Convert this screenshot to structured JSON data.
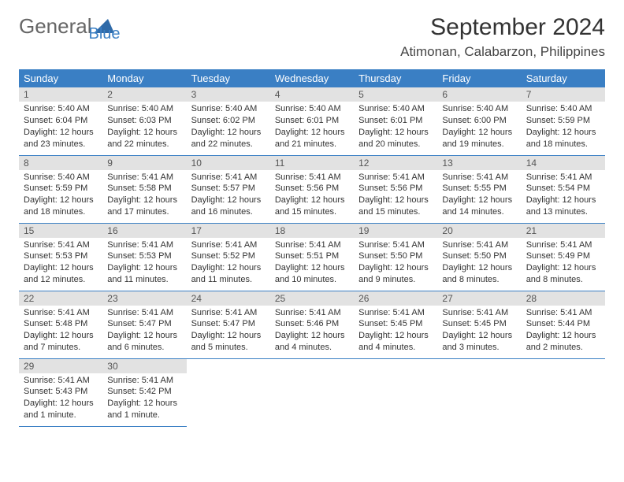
{
  "logo": {
    "text1": "General",
    "text2": "Blue",
    "shape_color": "#2f6aa8"
  },
  "title": "September 2024",
  "location": "Atimonan, Calabarzon, Philippines",
  "header_bg": "#3a7fc4",
  "daynum_bg": "#e2e2e2",
  "border_color": "#3a7fc4",
  "days_of_week": [
    "Sunday",
    "Monday",
    "Tuesday",
    "Wednesday",
    "Thursday",
    "Friday",
    "Saturday"
  ],
  "weeks": [
    [
      {
        "num": "1",
        "sunrise": "Sunrise: 5:40 AM",
        "sunset": "Sunset: 6:04 PM",
        "daylight1": "Daylight: 12 hours",
        "daylight2": "and 23 minutes."
      },
      {
        "num": "2",
        "sunrise": "Sunrise: 5:40 AM",
        "sunset": "Sunset: 6:03 PM",
        "daylight1": "Daylight: 12 hours",
        "daylight2": "and 22 minutes."
      },
      {
        "num": "3",
        "sunrise": "Sunrise: 5:40 AM",
        "sunset": "Sunset: 6:02 PM",
        "daylight1": "Daylight: 12 hours",
        "daylight2": "and 22 minutes."
      },
      {
        "num": "4",
        "sunrise": "Sunrise: 5:40 AM",
        "sunset": "Sunset: 6:01 PM",
        "daylight1": "Daylight: 12 hours",
        "daylight2": "and 21 minutes."
      },
      {
        "num": "5",
        "sunrise": "Sunrise: 5:40 AM",
        "sunset": "Sunset: 6:01 PM",
        "daylight1": "Daylight: 12 hours",
        "daylight2": "and 20 minutes."
      },
      {
        "num": "6",
        "sunrise": "Sunrise: 5:40 AM",
        "sunset": "Sunset: 6:00 PM",
        "daylight1": "Daylight: 12 hours",
        "daylight2": "and 19 minutes."
      },
      {
        "num": "7",
        "sunrise": "Sunrise: 5:40 AM",
        "sunset": "Sunset: 5:59 PM",
        "daylight1": "Daylight: 12 hours",
        "daylight2": "and 18 minutes."
      }
    ],
    [
      {
        "num": "8",
        "sunrise": "Sunrise: 5:40 AM",
        "sunset": "Sunset: 5:59 PM",
        "daylight1": "Daylight: 12 hours",
        "daylight2": "and 18 minutes."
      },
      {
        "num": "9",
        "sunrise": "Sunrise: 5:41 AM",
        "sunset": "Sunset: 5:58 PM",
        "daylight1": "Daylight: 12 hours",
        "daylight2": "and 17 minutes."
      },
      {
        "num": "10",
        "sunrise": "Sunrise: 5:41 AM",
        "sunset": "Sunset: 5:57 PM",
        "daylight1": "Daylight: 12 hours",
        "daylight2": "and 16 minutes."
      },
      {
        "num": "11",
        "sunrise": "Sunrise: 5:41 AM",
        "sunset": "Sunset: 5:56 PM",
        "daylight1": "Daylight: 12 hours",
        "daylight2": "and 15 minutes."
      },
      {
        "num": "12",
        "sunrise": "Sunrise: 5:41 AM",
        "sunset": "Sunset: 5:56 PM",
        "daylight1": "Daylight: 12 hours",
        "daylight2": "and 15 minutes."
      },
      {
        "num": "13",
        "sunrise": "Sunrise: 5:41 AM",
        "sunset": "Sunset: 5:55 PM",
        "daylight1": "Daylight: 12 hours",
        "daylight2": "and 14 minutes."
      },
      {
        "num": "14",
        "sunrise": "Sunrise: 5:41 AM",
        "sunset": "Sunset: 5:54 PM",
        "daylight1": "Daylight: 12 hours",
        "daylight2": "and 13 minutes."
      }
    ],
    [
      {
        "num": "15",
        "sunrise": "Sunrise: 5:41 AM",
        "sunset": "Sunset: 5:53 PM",
        "daylight1": "Daylight: 12 hours",
        "daylight2": "and 12 minutes."
      },
      {
        "num": "16",
        "sunrise": "Sunrise: 5:41 AM",
        "sunset": "Sunset: 5:53 PM",
        "daylight1": "Daylight: 12 hours",
        "daylight2": "and 11 minutes."
      },
      {
        "num": "17",
        "sunrise": "Sunrise: 5:41 AM",
        "sunset": "Sunset: 5:52 PM",
        "daylight1": "Daylight: 12 hours",
        "daylight2": "and 11 minutes."
      },
      {
        "num": "18",
        "sunrise": "Sunrise: 5:41 AM",
        "sunset": "Sunset: 5:51 PM",
        "daylight1": "Daylight: 12 hours",
        "daylight2": "and 10 minutes."
      },
      {
        "num": "19",
        "sunrise": "Sunrise: 5:41 AM",
        "sunset": "Sunset: 5:50 PM",
        "daylight1": "Daylight: 12 hours",
        "daylight2": "and 9 minutes."
      },
      {
        "num": "20",
        "sunrise": "Sunrise: 5:41 AM",
        "sunset": "Sunset: 5:50 PM",
        "daylight1": "Daylight: 12 hours",
        "daylight2": "and 8 minutes."
      },
      {
        "num": "21",
        "sunrise": "Sunrise: 5:41 AM",
        "sunset": "Sunset: 5:49 PM",
        "daylight1": "Daylight: 12 hours",
        "daylight2": "and 8 minutes."
      }
    ],
    [
      {
        "num": "22",
        "sunrise": "Sunrise: 5:41 AM",
        "sunset": "Sunset: 5:48 PM",
        "daylight1": "Daylight: 12 hours",
        "daylight2": "and 7 minutes."
      },
      {
        "num": "23",
        "sunrise": "Sunrise: 5:41 AM",
        "sunset": "Sunset: 5:47 PM",
        "daylight1": "Daylight: 12 hours",
        "daylight2": "and 6 minutes."
      },
      {
        "num": "24",
        "sunrise": "Sunrise: 5:41 AM",
        "sunset": "Sunset: 5:47 PM",
        "daylight1": "Daylight: 12 hours",
        "daylight2": "and 5 minutes."
      },
      {
        "num": "25",
        "sunrise": "Sunrise: 5:41 AM",
        "sunset": "Sunset: 5:46 PM",
        "daylight1": "Daylight: 12 hours",
        "daylight2": "and 4 minutes."
      },
      {
        "num": "26",
        "sunrise": "Sunrise: 5:41 AM",
        "sunset": "Sunset: 5:45 PM",
        "daylight1": "Daylight: 12 hours",
        "daylight2": "and 4 minutes."
      },
      {
        "num": "27",
        "sunrise": "Sunrise: 5:41 AM",
        "sunset": "Sunset: 5:45 PM",
        "daylight1": "Daylight: 12 hours",
        "daylight2": "and 3 minutes."
      },
      {
        "num": "28",
        "sunrise": "Sunrise: 5:41 AM",
        "sunset": "Sunset: 5:44 PM",
        "daylight1": "Daylight: 12 hours",
        "daylight2": "and 2 minutes."
      }
    ],
    [
      {
        "num": "29",
        "sunrise": "Sunrise: 5:41 AM",
        "sunset": "Sunset: 5:43 PM",
        "daylight1": "Daylight: 12 hours",
        "daylight2": "and 1 minute."
      },
      {
        "num": "30",
        "sunrise": "Sunrise: 5:41 AM",
        "sunset": "Sunset: 5:42 PM",
        "daylight1": "Daylight: 12 hours",
        "daylight2": "and 1 minute."
      },
      null,
      null,
      null,
      null,
      null
    ]
  ]
}
